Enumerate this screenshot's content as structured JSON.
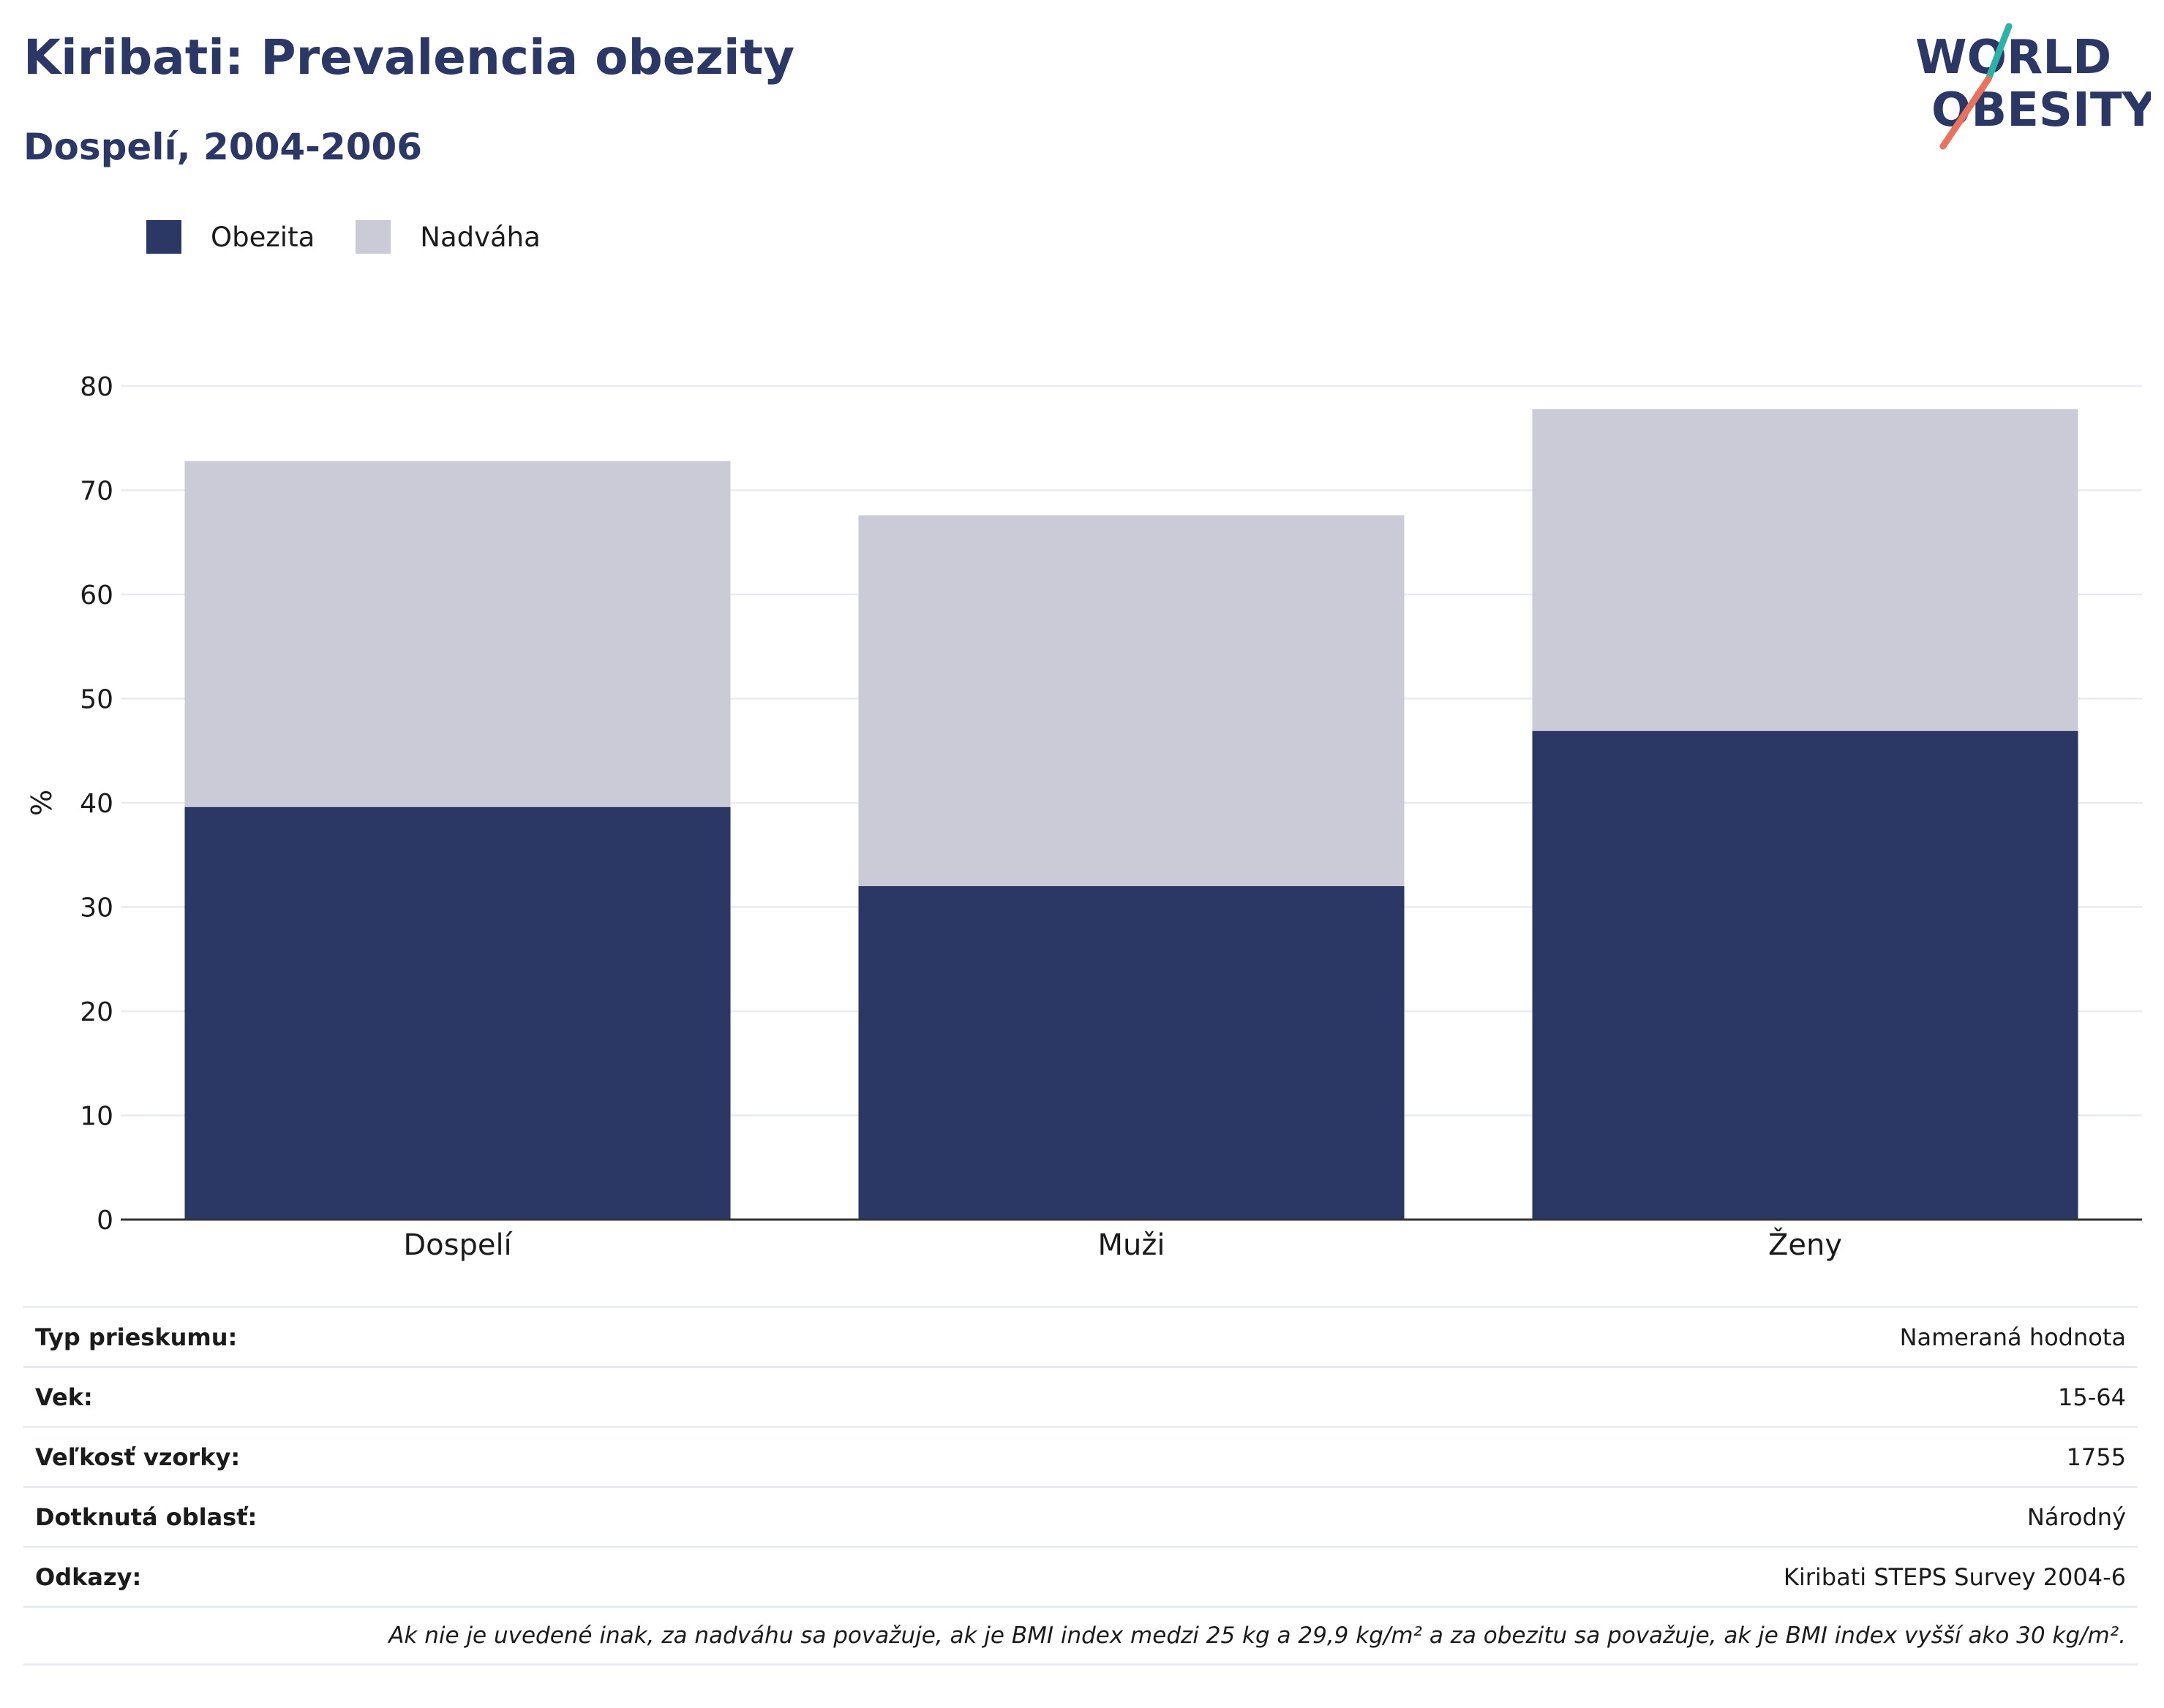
{
  "header": {
    "title": "Kiribati: Prevalencia obezity",
    "subtitle": "Dospelí, 2004-2006"
  },
  "logo": {
    "line1": "WORLD",
    "line2": "OBESITY",
    "colors": {
      "text": "#2b3866",
      "accent_teal": "#2bb3a8",
      "accent_coral": "#e8725c"
    }
  },
  "legend": {
    "items": [
      {
        "label": "Obezita",
        "color": "#2b3866"
      },
      {
        "label": "Nadváha",
        "color": "#cacbd7"
      }
    ]
  },
  "chart_data": {
    "type": "bar",
    "stacked": true,
    "categories": [
      "Dospelí",
      "Muži",
      "Ženy"
    ],
    "series": [
      {
        "name": "Obezita",
        "values": [
          39.6,
          32.0,
          46.9
        ],
        "color": "#2b3866"
      },
      {
        "name": "Nadváha",
        "values": [
          33.2,
          35.6,
          30.9
        ],
        "color": "#cacbd7"
      }
    ],
    "ylabel": "%",
    "ylim": [
      0,
      80
    ],
    "yticks": [
      0,
      10,
      20,
      30,
      40,
      50,
      60,
      70,
      80
    ],
    "grid": true,
    "legend_position": "top-left"
  },
  "info_table": {
    "rows": [
      {
        "label": "Typ prieskumu:",
        "value": "Nameraná hodnota"
      },
      {
        "label": "Vek:",
        "value": "15-64"
      },
      {
        "label": "Veľkosť vzorky:",
        "value": "1755"
      },
      {
        "label": "Dotknutá oblasť:",
        "value": "Národný"
      },
      {
        "label": "Odkazy:",
        "value": "Kiribati STEPS Survey 2004-6"
      }
    ],
    "note": "Ak nie je uvedené inak, za nadváhu sa považuje, ak je BMI index medzi 25 kg a 29,9 kg/m² a za obezitu sa považuje, ak je BMI index vyšší ako 30 kg/m²."
  }
}
